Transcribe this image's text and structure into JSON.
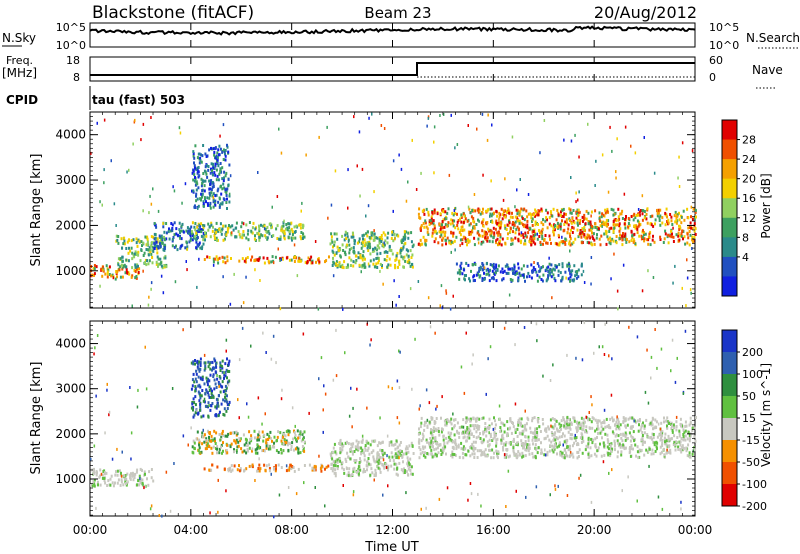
{
  "header": {
    "station": "Blackstone (fitACF)",
    "beam": "Beam 23",
    "date": "20/Aug/2012"
  },
  "status_panels": {
    "nsky_label": "N.Sky",
    "nsky_ticks": [
      "10^5",
      "10^0"
    ],
    "nsearch_label": "N.Search",
    "nsearch_ticks": [
      "10^5",
      "10^0"
    ],
    "freq_label": "Freq.",
    "freq_unit": "[MHz]",
    "freq_ticks": [
      "18",
      "8"
    ],
    "nave_label": "Nave",
    "nave_ticks": [
      "60",
      "0"
    ],
    "cpid_label": "CPID",
    "cpid_value": "tau (fast) 503"
  },
  "chart_data": [
    {
      "type": "heatmap",
      "name": "power",
      "ylabel": "Slant Range [km]",
      "xlabel": "Time UT",
      "x_ticks": [
        "00:00",
        "04:00",
        "08:00",
        "12:00",
        "16:00",
        "20:00",
        "00:00"
      ],
      "xlim_hours": [
        0,
        24
      ],
      "ylim_km": [
        180,
        4500
      ],
      "y_ticks": [
        "1000",
        "2000",
        "3000",
        "4000"
      ],
      "colorbar_label": "Power [dB]",
      "colorbar_ticks": [
        "28",
        "24",
        "20",
        "16",
        "12",
        "8",
        "4"
      ],
      "colorbar_colors": [
        "#e00000",
        "#f05000",
        "#f5a000",
        "#f3d000",
        "#90d060",
        "#3da060",
        "#2a8a8a",
        "#2050c0",
        "#1020e0"
      ],
      "echo_regions": [
        {
          "t": [
            0.0,
            2.0
          ],
          "range": [
            850,
            1150
          ],
          "level": "high"
        },
        {
          "t": [
            1.0,
            3.0
          ],
          "range": [
            1100,
            1800
          ],
          "level": "mid"
        },
        {
          "t": [
            2.5,
            4.5
          ],
          "range": [
            1500,
            2100
          ],
          "level": "low"
        },
        {
          "t": [
            4.0,
            8.5
          ],
          "range": [
            1700,
            2100
          ],
          "level": "mid"
        },
        {
          "t": [
            4.5,
            9.5
          ],
          "range": [
            1200,
            1350
          ],
          "level": "high"
        },
        {
          "t": [
            4.0,
            5.5
          ],
          "range": [
            2400,
            3800
          ],
          "level": "low"
        },
        {
          "t": [
            9.5,
            12.8
          ],
          "range": [
            1100,
            1900
          ],
          "level": "mid"
        },
        {
          "t": [
            13.0,
            24.0
          ],
          "range": [
            1600,
            2400
          ],
          "level": "high"
        },
        {
          "t": [
            14.5,
            19.5
          ],
          "range": [
            800,
            1200
          ],
          "level": "low"
        }
      ]
    },
    {
      "type": "heatmap",
      "name": "velocity",
      "ylabel": "Slant Range [km]",
      "xlabel": "Time UT",
      "x_ticks": [
        "00:00",
        "04:00",
        "08:00",
        "12:00",
        "16:00",
        "20:00",
        "00:00"
      ],
      "xlim_hours": [
        0,
        24
      ],
      "ylim_km": [
        180,
        4500
      ],
      "y_ticks": [
        "1000",
        "2000",
        "3000",
        "4000"
      ],
      "colorbar_label": "Velocity [m s^-1]",
      "colorbar_ticks": [
        "200",
        "100",
        "50",
        "15",
        "-15",
        "-50",
        "-100",
        "-200"
      ],
      "colorbar_colors": [
        "#1a35c8",
        "#2f60b0",
        "#2f8f3f",
        "#60c040",
        "#c8c8c0",
        "#f59000",
        "#f05000",
        "#e00000"
      ],
      "echo_regions": [
        {
          "t": [
            0.0,
            2.5
          ],
          "range": [
            850,
            1250
          ],
          "level": "ground"
        },
        {
          "t": [
            4.0,
            5.5
          ],
          "range": [
            2400,
            3700
          ],
          "level": "toward"
        },
        {
          "t": [
            4.5,
            9.5
          ],
          "range": [
            1200,
            1350
          ],
          "level": "away"
        },
        {
          "t": [
            4.0,
            8.5
          ],
          "range": [
            1600,
            2100
          ],
          "level": "slow-toward"
        },
        {
          "t": [
            9.5,
            12.8
          ],
          "range": [
            1100,
            1900
          ],
          "level": "ground"
        },
        {
          "t": [
            13.0,
            24.0
          ],
          "range": [
            1500,
            2400
          ],
          "level": "ground"
        }
      ]
    }
  ]
}
